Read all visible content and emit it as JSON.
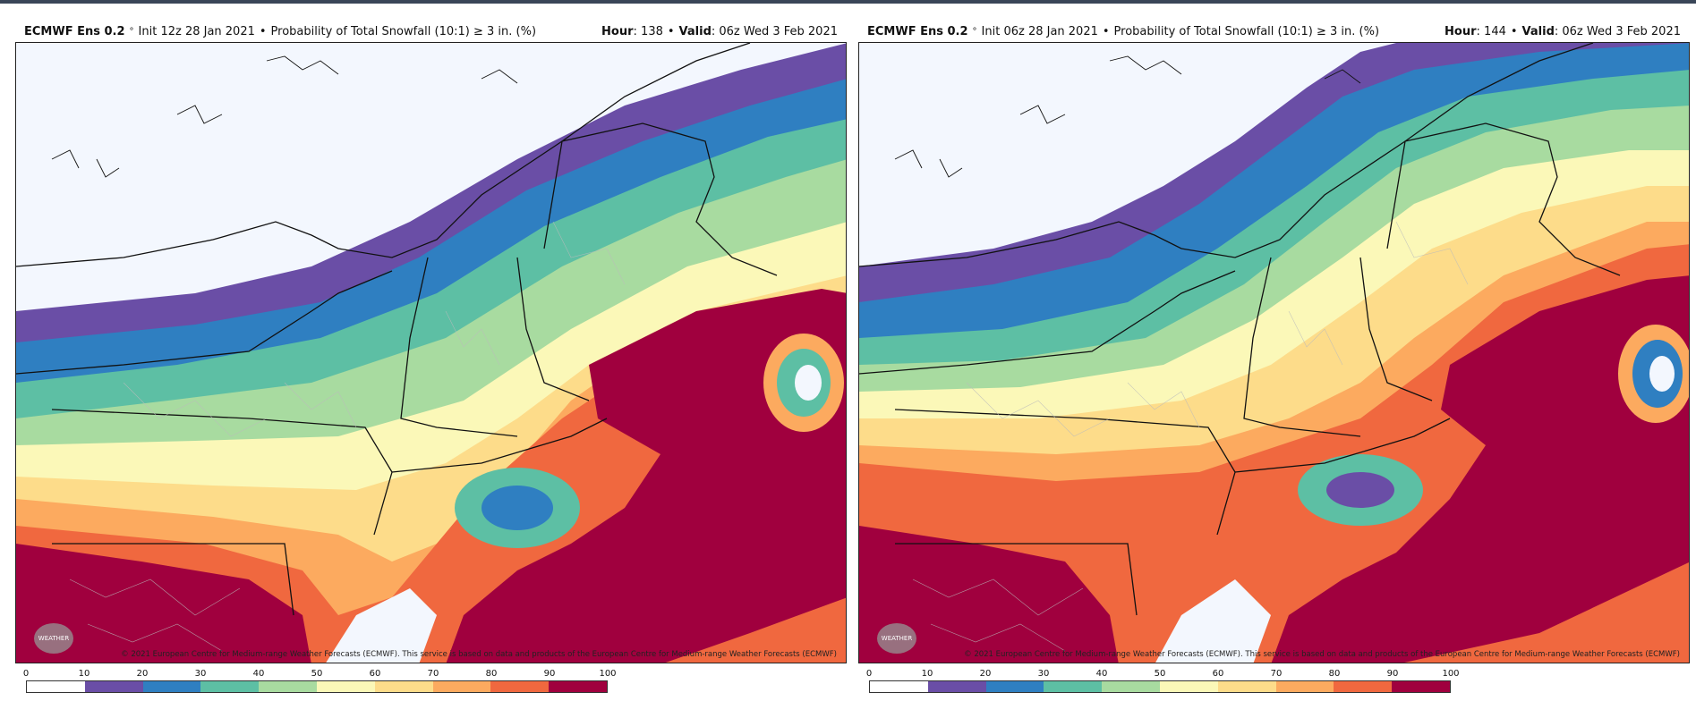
{
  "panels": [
    {
      "title_bold": "ECMWF Ens 0.2",
      "title_deg": "°",
      "title_init": "Init 12z 28 Jan 2021",
      "title_desc": "Probability of Total Snowfall (10:1)  ≥  3 in. (%)",
      "hour_label": "Hour",
      "hour_value": ": 138",
      "valid_label": "Valid",
      "valid_value": ": 06z Wed 3 Feb 2021",
      "copyright": "© 2021 European Centre for Medium-range Weather Forecasts (ECMWF). This service is based on data and products of the European Centre for Medium-range Weather Forecasts (ECMWF)",
      "logo_text": "WEATHER"
    },
    {
      "title_bold": "ECMWF Ens 0.2",
      "title_deg": "°",
      "title_init": "Init 06z 28 Jan 2021",
      "title_desc": "Probability of Total Snowfall (10:1)  ≥  3 in. (%)",
      "hour_label": "Hour",
      "hour_value": ": 144",
      "valid_label": "Valid",
      "valid_value": ": 06z Wed 3 Feb 2021",
      "copyright": "© 2021 European Centre for Medium-range Weather Forecasts (ECMWF). This service is based on data and products of the European Centre for Medium-range Weather Forecasts (ECMWF)",
      "logo_text": "WEATHER"
    }
  ],
  "legend": {
    "ticks": [
      "0",
      "10",
      "20",
      "30",
      "40",
      "50",
      "60",
      "70",
      "80",
      "90",
      "100"
    ],
    "colors": [
      "#ffffff",
      "#6a4ea6",
      "#2f7fc1",
      "#5dbfa4",
      "#a8dba0",
      "#fbf8b8",
      "#fddc8a",
      "#fcaa5f",
      "#f0683f",
      "#a0003e"
    ]
  }
}
